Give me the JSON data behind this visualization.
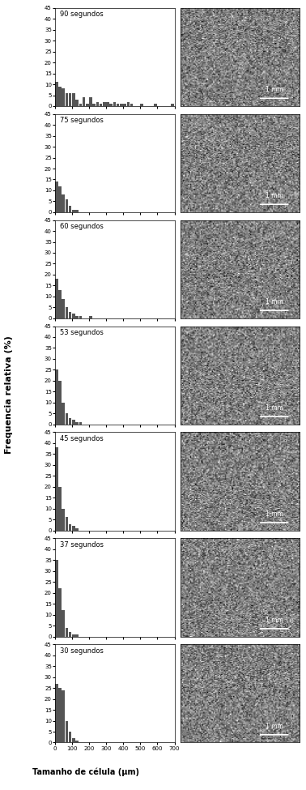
{
  "panels": [
    {
      "label": "90 segundos",
      "ylim": [
        0,
        45
      ],
      "yticks": [
        0,
        5,
        10,
        15,
        20,
        25,
        30,
        35,
        40,
        45
      ],
      "bar_data": [
        11,
        9,
        8,
        6,
        6,
        6,
        3,
        1,
        4,
        1,
        4,
        1,
        2,
        1,
        2,
        2,
        1,
        2,
        1,
        1,
        1,
        2,
        1,
        0,
        0,
        1,
        0,
        0,
        0,
        1,
        0,
        0,
        0,
        0,
        1
      ]
    },
    {
      "label": "75 segundos",
      "ylim": [
        0,
        45
      ],
      "yticks": [
        0,
        5,
        10,
        15,
        20,
        25,
        30,
        35,
        40,
        45
      ],
      "bar_data": [
        14,
        12,
        8,
        6,
        3,
        1,
        1,
        0,
        0,
        0,
        0,
        0,
        0,
        0,
        0,
        0,
        0,
        0,
        0,
        0,
        0,
        0,
        0,
        0,
        0,
        0,
        0,
        0,
        0,
        0,
        0,
        0,
        0,
        0,
        0
      ]
    },
    {
      "label": "60 segundos",
      "ylim": [
        0,
        45
      ],
      "yticks": [
        0,
        5,
        10,
        15,
        20,
        25,
        30,
        35,
        40,
        45
      ],
      "bar_data": [
        18,
        13,
        9,
        5,
        3,
        2,
        1,
        1,
        0,
        0,
        1,
        0,
        0,
        0,
        0,
        0,
        0,
        0,
        0,
        0,
        0,
        0,
        0,
        0,
        0,
        0,
        0,
        0,
        0,
        0,
        0,
        0,
        0,
        0,
        0
      ]
    },
    {
      "label": "53 segundos",
      "ylim": [
        0,
        45
      ],
      "yticks": [
        0,
        5,
        10,
        15,
        20,
        25,
        30,
        35,
        40,
        45
      ],
      "bar_data": [
        25,
        20,
        10,
        5,
        3,
        2,
        1,
        1,
        0,
        0,
        0,
        0,
        0,
        0,
        0,
        0,
        0,
        0,
        0,
        0,
        0,
        0,
        0,
        0,
        0,
        0,
        0,
        0,
        0,
        0,
        0,
        0,
        0,
        0,
        0
      ]
    },
    {
      "label": "45 segundos",
      "ylim": [
        0,
        45
      ],
      "yticks": [
        0,
        5,
        10,
        15,
        20,
        25,
        30,
        35,
        40,
        45
      ],
      "bar_data": [
        38,
        20,
        10,
        6,
        3,
        2,
        1,
        0,
        0,
        0,
        0,
        0,
        0,
        0,
        0,
        0,
        0,
        0,
        0,
        0,
        0,
        0,
        0,
        0,
        0,
        0,
        0,
        0,
        0,
        0,
        0,
        0,
        0,
        0,
        0
      ]
    },
    {
      "label": "37 segundos",
      "ylim": [
        0,
        45
      ],
      "yticks": [
        0,
        5,
        10,
        15,
        20,
        25,
        30,
        35,
        40,
        45
      ],
      "bar_data": [
        35,
        22,
        12,
        4,
        2,
        1,
        1,
        0,
        0,
        0,
        0,
        0,
        0,
        0,
        0,
        0,
        0,
        0,
        0,
        0,
        0,
        0,
        0,
        0,
        0,
        0,
        0,
        0,
        0,
        0,
        0,
        0,
        0,
        0,
        0
      ]
    },
    {
      "label": "30 segundos",
      "ylim": [
        0,
        45
      ],
      "yticks": [
        0,
        5,
        10,
        15,
        20,
        25,
        30,
        35,
        40,
        45
      ],
      "bar_data": [
        27,
        25,
        24,
        10,
        5,
        2,
        1,
        0,
        0,
        0,
        0,
        0,
        0,
        0,
        0,
        0,
        0,
        0,
        0,
        0,
        0,
        0,
        0,
        0,
        0,
        0,
        0,
        0,
        0,
        0,
        0,
        0,
        0,
        0,
        0
      ]
    }
  ],
  "x_max": 700,
  "x_step": 20,
  "xlabel": "Tamanho de célula (μm)",
  "ylabel": "Frequencia relativa (%)",
  "bar_color": "#555555",
  "bg_color": "#ffffff",
  "image_bg": "#888888",
  "n_panels": 7,
  "xticks": [
    0,
    100,
    200,
    300,
    400,
    500,
    600,
    700
  ]
}
